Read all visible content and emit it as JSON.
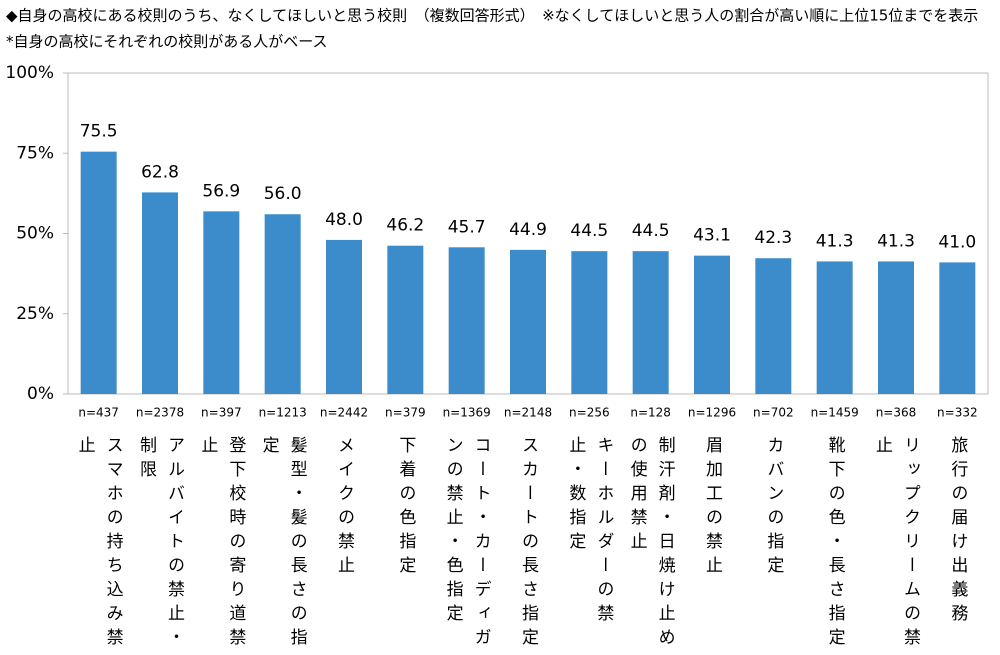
{
  "chart_data": {
    "type": "bar",
    "title": "◆自身の高校にある校則のうち、なくしてほしいと思う校則　（複数回答形式）　※なくしてほしいと思う人の割合が高い順に上位15位までを表示",
    "subtitle": "*自身の高校にそれぞれの校則がある人がベース",
    "categories": [
      "スマホの持ち込み禁止",
      "アルバイトの禁止・制限",
      "登下校時の寄り道禁止",
      "髪型・髪の長さの指定",
      "メイクの禁止",
      "下着の色指定",
      "コート・カーディガンの禁止・色指定",
      "スカートの長さ指定",
      "キーホルダーの禁止・数指定",
      "制汗剤・日焼け止めの使用禁止",
      "眉加工の禁止",
      "カバンの指定",
      "靴下の色・長さ指定",
      "リップクリームの禁止",
      "旅行の届け出義務"
    ],
    "n_labels": [
      "n=437",
      "n=2378",
      "n=397",
      "n=1213",
      "n=2442",
      "n=379",
      "n=1369",
      "n=2148",
      "n=256",
      "n=128",
      "n=1296",
      "n=702",
      "n=1459",
      "n=368",
      "n=332"
    ],
    "values": [
      75.5,
      62.8,
      56.9,
      56.0,
      48.0,
      46.2,
      45.7,
      44.9,
      44.5,
      44.5,
      43.1,
      42.3,
      41.3,
      41.3,
      41.0
    ],
    "value_labels": [
      "75.5",
      "62.8",
      "56.9",
      "56.0",
      "48.0",
      "46.2",
      "45.7",
      "44.9",
      "44.5",
      "44.5",
      "43.1",
      "42.3",
      "41.3",
      "41.3",
      "41.0"
    ],
    "color": "#3c8ccb",
    "ylim": [
      0,
      100
    ],
    "yticks": [
      {
        "value": 0,
        "label": "0%"
      },
      {
        "value": 25,
        "label": "25%"
      },
      {
        "value": 50,
        "label": "50%"
      },
      {
        "value": 75,
        "label": "75%"
      },
      {
        "value": 100,
        "label": "100%"
      }
    ]
  }
}
